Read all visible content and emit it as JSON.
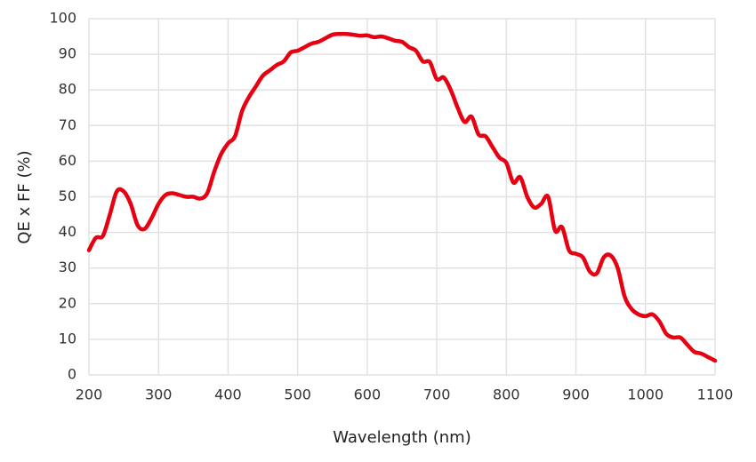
{
  "chart_data": {
    "type": "line",
    "x_label": "Wavelength (nm)",
    "y_label": "QE x FF (%)",
    "x": [
      200,
      210,
      220,
      230,
      240,
      250,
      260,
      270,
      280,
      290,
      300,
      310,
      320,
      330,
      340,
      350,
      360,
      370,
      380,
      390,
      400,
      410,
      420,
      430,
      440,
      450,
      460,
      470,
      480,
      490,
      500,
      510,
      520,
      530,
      540,
      550,
      560,
      570,
      580,
      590,
      600,
      610,
      620,
      630,
      640,
      650,
      660,
      670,
      680,
      690,
      700,
      710,
      720,
      730,
      740,
      750,
      760,
      770,
      780,
      790,
      800,
      810,
      820,
      830,
      840,
      850,
      860,
      870,
      880,
      890,
      900,
      910,
      920,
      930,
      940,
      950,
      960,
      970,
      980,
      990,
      1000,
      1010,
      1020,
      1030,
      1040,
      1050,
      1060,
      1070,
      1080,
      1090,
      1100
    ],
    "values": [
      35,
      38.5,
      39,
      45,
      51.5,
      51.5,
      48,
      42,
      41,
      44,
      48,
      50.5,
      51,
      50.5,
      50,
      50,
      49.5,
      51,
      57,
      62,
      65,
      67,
      74,
      78,
      81,
      84,
      85.5,
      87,
      88,
      90.5,
      91,
      92,
      93,
      93.5,
      94.5,
      95.5,
      95.7,
      95.7,
      95.5,
      95.2,
      95.3,
      94.8,
      95,
      94.5,
      93.8,
      93.5,
      92,
      91,
      88,
      87.8,
      83,
      83.5,
      80,
      75,
      71,
      72.5,
      67.5,
      67,
      64,
      61,
      59.5,
      54,
      55.5,
      50,
      47,
      48,
      50,
      40.5,
      41.5,
      35,
      34,
      33,
      29,
      28.5,
      33,
      33.5,
      30,
      22,
      18.5,
      17,
      16.5,
      17,
      15,
      11.5,
      10.5,
      10.5,
      8.5,
      6.5,
      6,
      5,
      4
    ],
    "color": "#e60012",
    "xlim": [
      200,
      1100
    ],
    "xticks": [
      200,
      300,
      400,
      500,
      600,
      700,
      800,
      900,
      1000,
      1100
    ],
    "ylim": [
      0,
      100
    ],
    "yticks": [
      0,
      10,
      20,
      30,
      40,
      50,
      60,
      70,
      80,
      90,
      100
    ],
    "grid": true
  }
}
